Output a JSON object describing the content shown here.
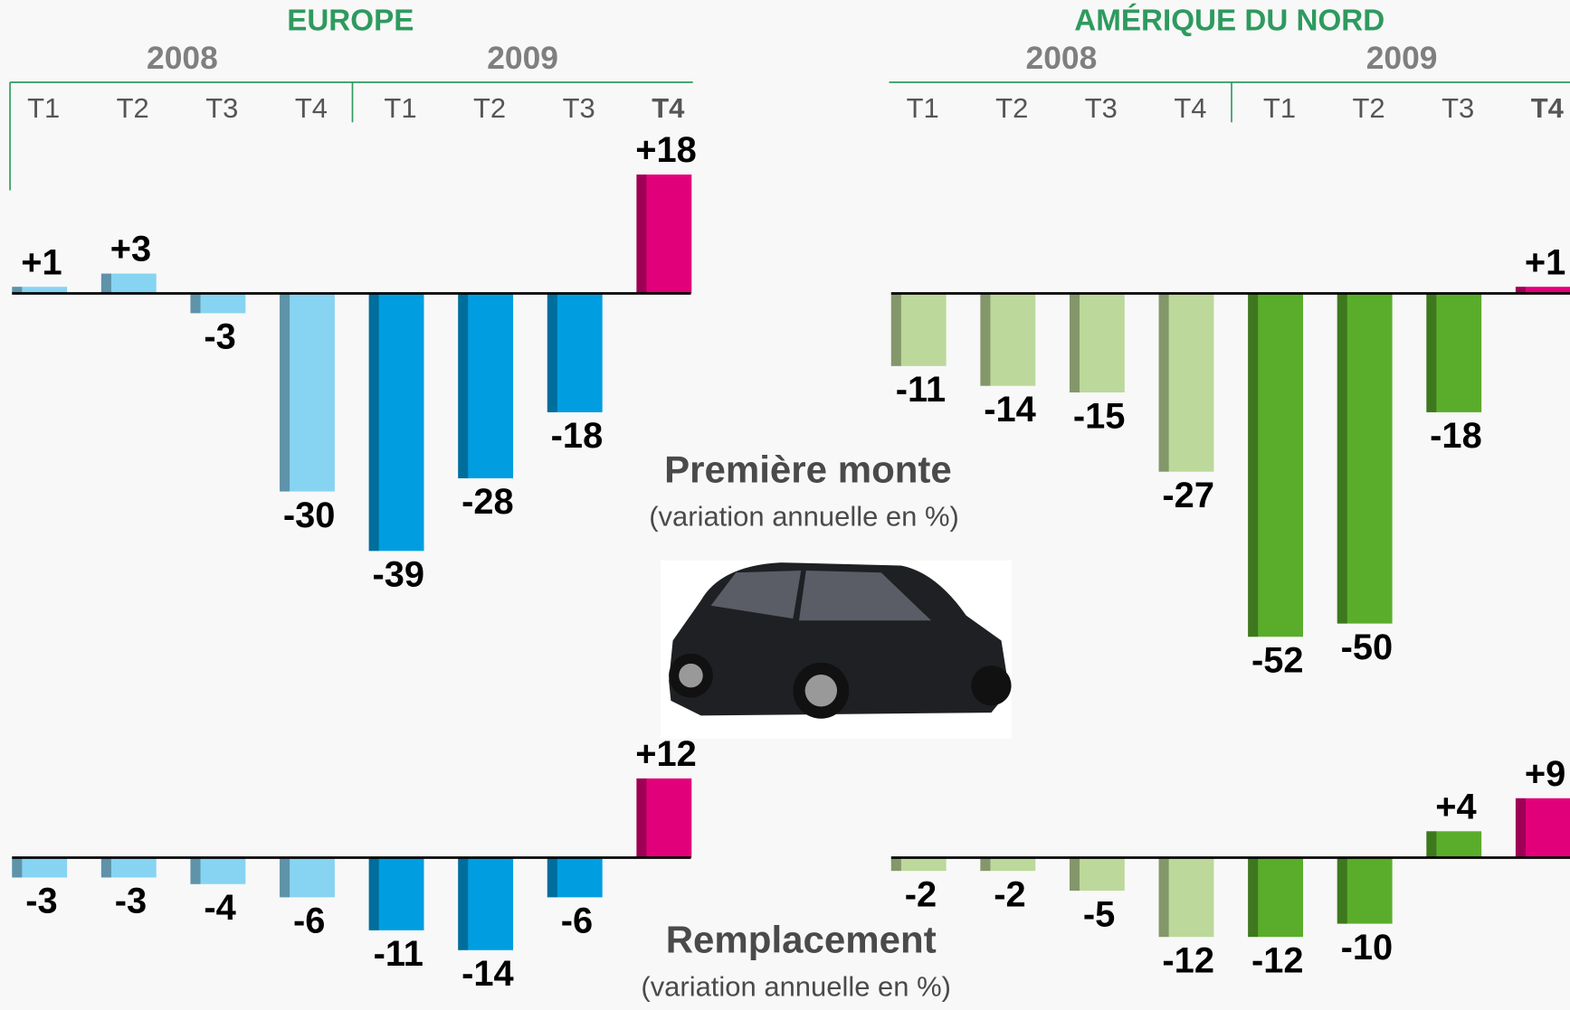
{
  "sections": [
    {
      "title": "Première monte",
      "subtitle": "(variation annuelle en %)"
    },
    {
      "title": "Remplacement",
      "subtitle": "(variation annuelle en %)"
    }
  ],
  "chart_data": [
    {
      "type": "bar",
      "title": "EUROPE",
      "groups": [
        "2008",
        "2009"
      ],
      "categories": [
        "T1",
        "T2",
        "T3",
        "T4",
        "T1",
        "T2",
        "T3",
        "T4"
      ],
      "values": [
        1,
        3,
        -3,
        -30,
        -39,
        -28,
        -18,
        18
      ],
      "value_labels": [
        "+1",
        "+3",
        "-3",
        "-30",
        "-39",
        "-28",
        "-18",
        "+18"
      ],
      "colors": [
        "#87d3f2",
        "#87d3f2",
        "#87d3f2",
        "#87d3f2",
        "#009ee0",
        "#009ee0",
        "#009ee0",
        "#e2007a"
      ]
    },
    {
      "type": "bar",
      "title": "AMÉRIQUE DU NORD",
      "groups": [
        "2008",
        "2009"
      ],
      "categories": [
        "T1",
        "T2",
        "T3",
        "T4",
        "T1",
        "T2",
        "T3",
        "T4"
      ],
      "values": [
        -11,
        -14,
        -15,
        -27,
        -52,
        -50,
        -18,
        1
      ],
      "value_labels": [
        "-11",
        "-14",
        "-15",
        "-27",
        "-52",
        "-50",
        "-18",
        "+1"
      ],
      "colors": [
        "#bcd89a",
        "#bcd89a",
        "#bcd89a",
        "#bcd89a",
        "#5aad2b",
        "#5aad2b",
        "#5aad2b",
        "#e2007a"
      ]
    },
    {
      "type": "bar",
      "values": [
        -3,
        -3,
        -4,
        -6,
        -11,
        -14,
        -6,
        12
      ],
      "value_labels": [
        "-3",
        "-3",
        "-4",
        "-6",
        "-11",
        "-14",
        "-6",
        "+12"
      ],
      "colors": [
        "#87d3f2",
        "#87d3f2",
        "#87d3f2",
        "#87d3f2",
        "#009ee0",
        "#009ee0",
        "#009ee0",
        "#e2007a"
      ]
    },
    {
      "type": "bar",
      "values": [
        -2,
        -2,
        -5,
        -12,
        -12,
        -10,
        4,
        9
      ],
      "value_labels": [
        "-2",
        "-2",
        "-5",
        "-12",
        "-12",
        "-10",
        "+4",
        "+9"
      ],
      "colors": [
        "#bcd89a",
        "#bcd89a",
        "#bcd89a",
        "#bcd89a",
        "#5aad2b",
        "#5aad2b",
        "#5aad2b",
        "#e2007a"
      ]
    }
  ]
}
